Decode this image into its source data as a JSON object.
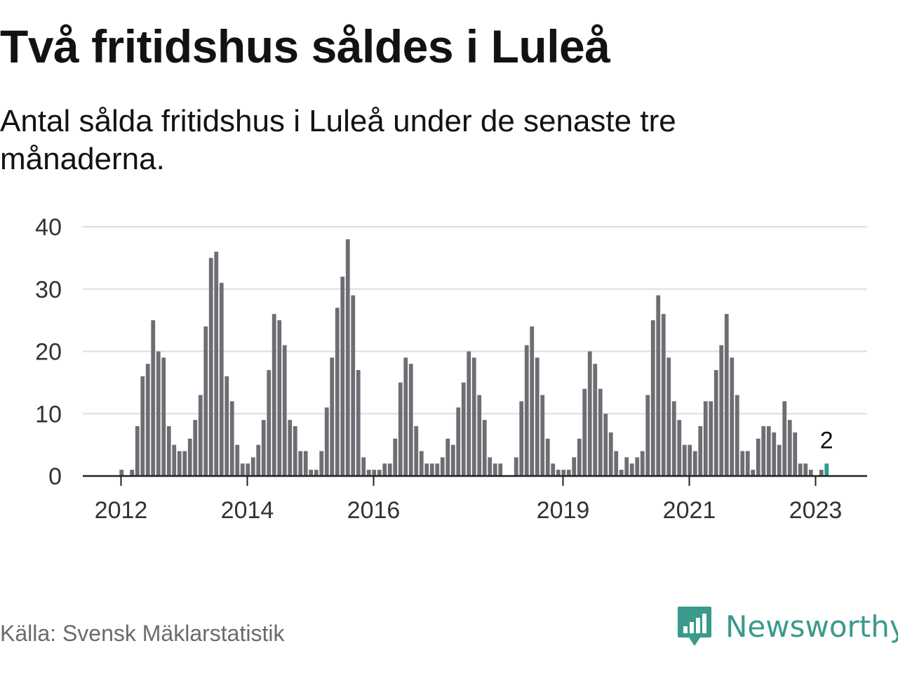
{
  "title": "Två fritidshus såldes i Luleå",
  "subtitle": "Antal sålda fritidshus i Luleå under de senaste tre månaderna.",
  "source": "Källa: Svensk Mäklarstatistik",
  "brand": {
    "name": "Newsworthy",
    "logo_icon": "bar-chart-speech-bubble-icon"
  },
  "colors": {
    "bar": "#6f6d73",
    "highlight": "#2a9d8f",
    "grid": "#dddddd",
    "axis": "#222222",
    "brand": "#3a9a8c"
  },
  "chart_data": {
    "type": "bar",
    "title": "Två fritidshus såldes i Luleå",
    "subtitle": "Antal sålda fritidshus i Luleå under de senaste tre månaderna.",
    "start": "2012-01",
    "frequency": "monthly",
    "values": [
      1,
      0,
      1,
      8,
      16,
      18,
      25,
      20,
      19,
      8,
      5,
      4,
      4,
      6,
      9,
      13,
      24,
      35,
      36,
      31,
      16,
      12,
      5,
      2,
      2,
      3,
      5,
      9,
      17,
      26,
      25,
      21,
      9,
      8,
      4,
      4,
      1,
      1,
      4,
      11,
      19,
      27,
      32,
      38,
      29,
      17,
      3,
      1,
      1,
      1,
      2,
      2,
      6,
      15,
      19,
      18,
      8,
      4,
      2,
      2,
      2,
      3,
      6,
      5,
      11,
      15,
      20,
      19,
      13,
      9,
      3,
      2,
      2,
      0,
      0,
      3,
      12,
      21,
      24,
      19,
      13,
      6,
      2,
      1,
      1,
      1,
      3,
      6,
      14,
      20,
      18,
      14,
      10,
      7,
      4,
      1,
      3,
      2,
      3,
      4,
      13,
      25,
      29,
      26,
      19,
      12,
      9,
      5,
      5,
      4,
      8,
      12,
      12,
      17,
      21,
      26,
      19,
      13,
      4,
      4,
      1,
      6,
      8,
      8,
      7,
      5,
      12,
      9,
      7,
      2,
      2,
      1,
      0,
      1,
      2
    ],
    "highlight_last": true,
    "last_label": "2",
    "xticks": [
      "2012",
      "2014",
      "2016",
      "2019",
      "2021",
      "2023"
    ],
    "yticks": [
      0,
      10,
      20,
      30,
      40
    ],
    "ylim": [
      0,
      40
    ],
    "xlabel": "",
    "ylabel": "",
    "grid": true,
    "legend": "none"
  }
}
